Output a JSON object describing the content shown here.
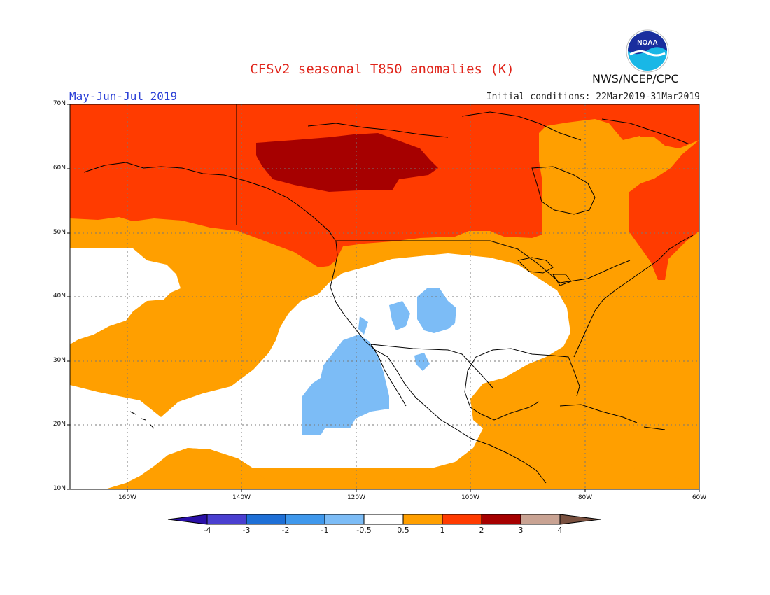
{
  "header": {
    "title": "CFSv2 seasonal T850 anomalies (K)",
    "period": "May-Jun-Jul 2019",
    "initial_conditions": "Initial conditions: 22Mar2019-31Mar2019",
    "agency": "NWS/NCEP/CPC",
    "logo_text": "NOAA"
  },
  "axes": {
    "lat_labels": [
      "70N",
      "60N",
      "50N",
      "40N",
      "30N",
      "20N",
      "10N"
    ],
    "lon_labels": [
      "160W",
      "140W",
      "120W",
      "100W",
      "80W",
      "60W"
    ]
  },
  "colorbar": {
    "tick_labels": [
      "-4",
      "-3",
      "-2",
      "-1",
      "-0.5",
      "0.5",
      "1",
      "2",
      "3",
      "4"
    ],
    "colors": [
      "#2a10a8",
      "#4a3fd0",
      "#1e6fd6",
      "#3f98ec",
      "#7cbcf6",
      "#ffffff",
      "#ff9f00",
      "#ff3b00",
      "#a60000",
      "#c9a393",
      "#7a5140"
    ]
  },
  "colors": {
    "warm_1": "#ff9f00",
    "warm_2": "#ff3b00",
    "warm_3": "#a60000",
    "cool_1": "#7cbcf6",
    "neutral": "#ffffff",
    "title": "#e0241a",
    "period": "#2a3fd6"
  }
}
